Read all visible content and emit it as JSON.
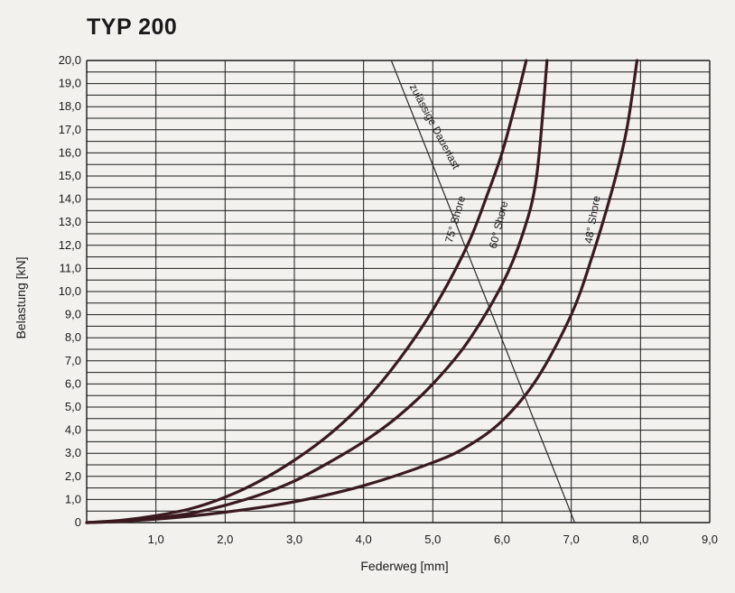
{
  "title": "TYP 200",
  "chart_data": {
    "type": "line",
    "title": "TYP 200",
    "xlabel": "Federweg [mm]",
    "ylabel": "Belastung [kN]",
    "xlim": [
      0,
      9.0
    ],
    "ylim": [
      0,
      20.0
    ],
    "grid": true,
    "x_ticks": [
      "1,0",
      "2,0",
      "3,0",
      "4,0",
      "5,0",
      "6,0",
      "7,0",
      "8,0",
      "9,0"
    ],
    "y_ticks": [
      "0",
      "1,0",
      "2,0",
      "3,0",
      "4,0",
      "5,0",
      "6,0",
      "7,0",
      "8,0",
      "9,0",
      "10,0",
      "11,0",
      "12,0",
      "13,0",
      "14,0",
      "15,0",
      "16,0",
      "17,0",
      "18,0",
      "19,0",
      "20,0"
    ],
    "series": [
      {
        "name": "75° Shore",
        "x": [
          0,
          0.5,
          1.0,
          1.5,
          2.0,
          2.5,
          3.0,
          3.5,
          4.0,
          4.5,
          5.0,
          5.5,
          5.8,
          6.0,
          6.2,
          6.35
        ],
        "y": [
          0,
          0.1,
          0.3,
          0.6,
          1.1,
          1.8,
          2.7,
          3.8,
          5.2,
          7.0,
          9.2,
          12.0,
          14.3,
          16.0,
          18.2,
          20.0
        ]
      },
      {
        "name": "60° Shore",
        "x": [
          0,
          0.5,
          1.0,
          1.5,
          2.0,
          2.5,
          3.0,
          3.5,
          4.0,
          4.5,
          5.0,
          5.5,
          6.0,
          6.3,
          6.5,
          6.65
        ],
        "y": [
          0,
          0.05,
          0.2,
          0.4,
          0.75,
          1.2,
          1.8,
          2.6,
          3.5,
          4.6,
          6.0,
          7.8,
          10.3,
          12.5,
          15.0,
          20.0
        ]
      },
      {
        "name": "48° Shore",
        "x": [
          0,
          1.0,
          2.0,
          3.0,
          4.0,
          5.0,
          5.5,
          6.0,
          6.5,
          7.0,
          7.3,
          7.6,
          7.8,
          7.95
        ],
        "y": [
          0,
          0.15,
          0.45,
          0.9,
          1.6,
          2.6,
          3.3,
          4.4,
          6.2,
          9.0,
          11.5,
          14.5,
          17.0,
          20.0
        ]
      },
      {
        "name": "zulässige Dauerlast",
        "x": [
          4.4,
          7.05
        ],
        "y": [
          20.0,
          0
        ]
      }
    ]
  }
}
